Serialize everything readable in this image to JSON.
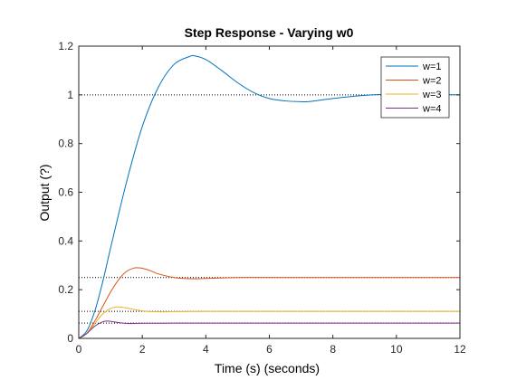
{
  "chart_data": {
    "type": "line",
    "title": "Step Response - Varying w0",
    "xlabel": "Time (s) (seconds)",
    "ylabel": "Output (?)",
    "xlim": [
      0,
      12
    ],
    "ylim": [
      0,
      1.2
    ],
    "xticks": [
      0,
      2,
      4,
      6,
      8,
      10,
      12
    ],
    "yticks": [
      0,
      0.2,
      0.4,
      0.6,
      0.8,
      1,
      1.2
    ],
    "xtick_labels": [
      "0",
      "2",
      "4",
      "6",
      "8",
      "10",
      "12"
    ],
    "ytick_labels": [
      "0",
      "0.2",
      "0.4",
      "0.6",
      "0.8",
      "1",
      "1.2"
    ],
    "grid": false,
    "legend_position": "top-right",
    "series": [
      {
        "name": "w=1",
        "color": "#0072bd",
        "final_value": 1.0,
        "x": [
          0,
          0.25,
          0.5,
          0.75,
          1,
          1.5,
          2,
          2.5,
          3,
          3.5,
          3.65,
          4,
          4.5,
          5,
          5.5,
          6,
          6.5,
          7,
          7.3,
          8,
          9,
          10,
          11,
          12
        ],
        "y": [
          0,
          0.03,
          0.11,
          0.23,
          0.37,
          0.64,
          0.87,
          1.03,
          1.125,
          1.158,
          1.16,
          1.145,
          1.1,
          1.05,
          1.01,
          0.985,
          0.975,
          0.972,
          0.973,
          0.985,
          0.998,
          1.003,
          1.002,
          1.0
        ]
      },
      {
        "name": "w=2",
        "color": "#d95319",
        "final_value": 0.25,
        "x": [
          0,
          0.25,
          0.5,
          0.75,
          1,
          1.25,
          1.5,
          1.75,
          1.85,
          2,
          2.25,
          2.5,
          3,
          3.5,
          4,
          5,
          6,
          8,
          10,
          12
        ],
        "y": [
          0,
          0.02,
          0.07,
          0.13,
          0.19,
          0.24,
          0.275,
          0.289,
          0.29,
          0.288,
          0.278,
          0.265,
          0.25,
          0.245,
          0.246,
          0.25,
          0.25,
          0.25,
          0.25,
          0.25
        ]
      },
      {
        "name": "w=3",
        "color": "#edb120",
        "final_value": 0.111,
        "x": [
          0,
          0.25,
          0.5,
          0.75,
          1,
          1.2,
          1.4,
          1.7,
          2,
          2.5,
          3,
          4,
          6,
          8,
          10,
          12
        ],
        "y": [
          0,
          0.02,
          0.06,
          0.1,
          0.123,
          0.129,
          0.127,
          0.12,
          0.113,
          0.109,
          0.11,
          0.111,
          0.111,
          0.111,
          0.111,
          0.111
        ]
      },
      {
        "name": "w=4",
        "color": "#7e2f8e",
        "final_value": 0.0625,
        "x": [
          0,
          0.25,
          0.5,
          0.75,
          0.9,
          1.1,
          1.3,
          1.6,
          2,
          3,
          4,
          6,
          8,
          10,
          12
        ],
        "y": [
          0,
          0.02,
          0.05,
          0.068,
          0.071,
          0.068,
          0.064,
          0.061,
          0.062,
          0.0625,
          0.0625,
          0.0625,
          0.0625,
          0.0625,
          0.0625
        ]
      }
    ]
  }
}
